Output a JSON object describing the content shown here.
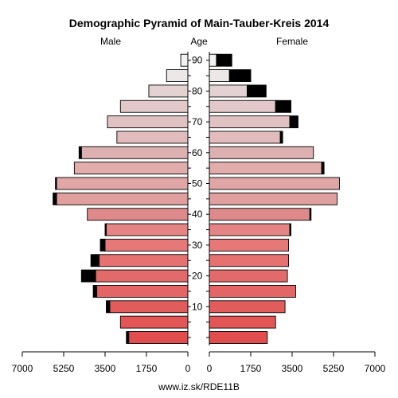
{
  "chart_data": {
    "type": "bar",
    "title": "Demographic Pyramid of Main-Tauber-Kreis 2014",
    "left_label": "Male",
    "center_label": "Age",
    "right_label": "Female",
    "footer": "www.iz.sk/RDE11B",
    "xlim": [
      0,
      7000
    ],
    "x_ticks": [
      "7000",
      "5250",
      "3500",
      "1750",
      "0",
      "0",
      "1750",
      "3500",
      "5250",
      "7000"
    ],
    "age_ticks": [
      "10",
      "20",
      "30",
      "40",
      "50",
      "60",
      "70",
      "80",
      "90"
    ],
    "age_groups": [
      "0-4",
      "5-9",
      "10-14",
      "15-19",
      "20-24",
      "25-29",
      "30-34",
      "35-39",
      "40-44",
      "45-49",
      "50-54",
      "55-59",
      "60-64",
      "65-69",
      "70-74",
      "75-79",
      "80-84",
      "85-89",
      "90+"
    ],
    "male": [
      2500,
      2850,
      3300,
      3850,
      3900,
      3750,
      3500,
      3450,
      4250,
      5550,
      5550,
      4800,
      4500,
      3000,
      3400,
      2850,
      1650,
      900,
      300
    ],
    "female": [
      2450,
      2800,
      3200,
      3650,
      3300,
      3350,
      3350,
      3400,
      4250,
      5400,
      5500,
      4750,
      4400,
      3000,
      3400,
      2800,
      1600,
      850,
      300
    ],
    "excess_male": [
      100,
      0,
      150,
      150,
      600,
      350,
      200,
      50,
      0,
      150,
      50,
      0,
      100,
      0,
      0,
      0,
      0,
      0,
      0
    ],
    "excess_female": [
      0,
      0,
      0,
      0,
      0,
      0,
      0,
      50,
      50,
      0,
      0,
      100,
      0,
      100,
      350,
      650,
      800,
      900,
      650
    ],
    "colors": [
      "#e24d4d",
      "#e35656",
      "#e25c5c",
      "#e46565",
      "#e36a6a",
      "#e57171",
      "#e67878",
      "#e58484",
      "#df8a8a",
      "#e09f9f",
      "#e0a6a6",
      "#e0acac",
      "#dcb0b0",
      "#e2bcbc",
      "#e1c2c2",
      "#e2c8c8",
      "#e4d2d2",
      "#ece8e8",
      "#f2f2f2"
    ],
    "grid": false,
    "legend": "none"
  }
}
